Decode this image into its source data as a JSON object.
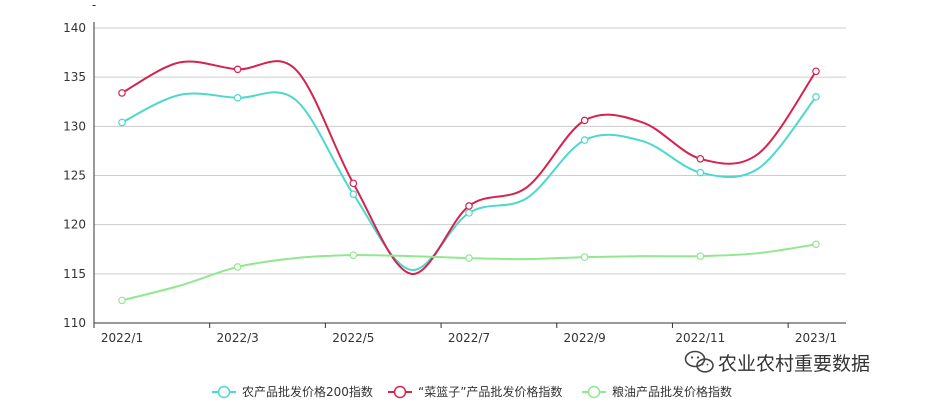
{
  "chart_data": {
    "type": "line",
    "y_axis_label": "-",
    "categories": [
      "2022/1",
      "2022/2",
      "2022/3",
      "2022/4",
      "2022/5",
      "2022/6",
      "2022/7",
      "2022/8",
      "2022/9",
      "2022/10",
      "2022/11",
      "2022/12",
      "2023/1"
    ],
    "x_tick_labels": [
      "2022/1",
      "2022/3",
      "2022/5",
      "2022/7",
      "2022/9",
      "2022/11",
      "2023/1"
    ],
    "ylim": [
      110,
      140
    ],
    "y_ticks": [
      110,
      115,
      120,
      125,
      130,
      135,
      140
    ],
    "grid": true,
    "legend_position": "bottom-center",
    "series": [
      {
        "name": "农产品批发价格200指数",
        "color": "#4ed8cc",
        "values": [
          130.4,
          133.2,
          132.9,
          132.7,
          123.1,
          115.4,
          121.2,
          122.7,
          128.6,
          128.5,
          125.3,
          125.7,
          133.0
        ]
      },
      {
        "name": "“菜篮子”产品批发价格指数",
        "color": "#d4234d",
        "values": [
          133.4,
          136.5,
          135.8,
          135.8,
          124.2,
          115.0,
          121.9,
          123.8,
          130.6,
          130.4,
          126.7,
          127.2,
          135.6
        ]
      },
      {
        "name": "粮油产品批发价格指数",
        "color": "#90e88f",
        "values": [
          112.3,
          113.8,
          115.7,
          116.6,
          116.9,
          116.8,
          116.6,
          116.5,
          116.7,
          116.8,
          116.8,
          117.1,
          118.0
        ]
      }
    ]
  },
  "watermark": {
    "text": "农业农村重要数据",
    "icon": "wechat-icon"
  }
}
